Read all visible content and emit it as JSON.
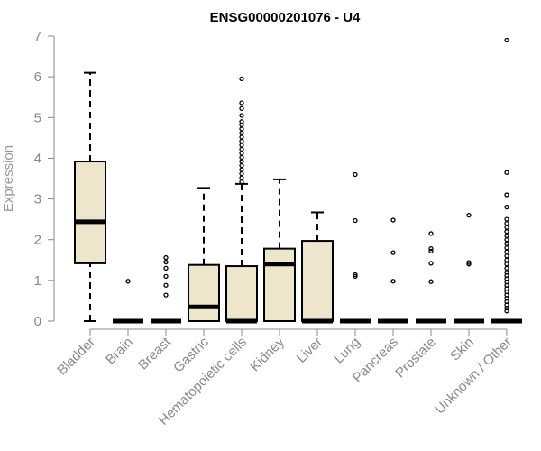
{
  "chart_data": {
    "type": "boxplot",
    "title": "ENSG00000201076 - U4",
    "xlabel": "",
    "ylabel": "Expression",
    "ylim": [
      0,
      7
    ],
    "yticks": [
      0,
      1,
      2,
      3,
      4,
      5,
      6,
      7
    ],
    "grid": false,
    "legend": "none",
    "box_fill": "#ede6cc",
    "categories": [
      "Bladder",
      "Brain",
      "Breast",
      "Gastric",
      "Hematopoietic cells",
      "Kidney",
      "Liver",
      "Lung",
      "Pancreas",
      "Prostate",
      "Skin",
      "Unknown / Other"
    ],
    "boxes": [
      {
        "min": 0.0,
        "q1": 1.42,
        "median": 2.44,
        "q3": 3.92,
        "max": 6.1,
        "outliers": []
      },
      {
        "min": 0.0,
        "q1": 0.0,
        "median": 0.0,
        "q3": 0.0,
        "max": 0.0,
        "outliers": [
          0.98
        ]
      },
      {
        "min": 0.0,
        "q1": 0.0,
        "median": 0.0,
        "q3": 0.0,
        "max": 0.0,
        "outliers": [
          0.64,
          0.88,
          1.1,
          1.3,
          1.45,
          1.56
        ]
      },
      {
        "min": 0.0,
        "q1": 0.0,
        "median": 0.35,
        "q3": 1.38,
        "max": 3.27,
        "outliers": []
      },
      {
        "min": 0.0,
        "q1": 0.0,
        "median": 0.0,
        "q3": 1.35,
        "max": 3.37,
        "outliers": [
          3.42,
          3.52,
          3.62,
          3.72,
          3.82,
          3.92,
          4.02,
          4.12,
          4.22,
          4.32,
          4.42,
          4.52,
          4.62,
          4.72,
          4.82,
          4.9,
          5.05,
          5.22,
          5.36,
          5.95
        ]
      },
      {
        "min": 0.0,
        "q1": 0.0,
        "median": 1.4,
        "q3": 1.78,
        "max": 3.48,
        "outliers": []
      },
      {
        "min": 0.0,
        "q1": 0.0,
        "median": 0.0,
        "q3": 1.97,
        "max": 2.67,
        "outliers": []
      },
      {
        "min": 0.0,
        "q1": 0.0,
        "median": 0.0,
        "q3": 0.0,
        "max": 0.0,
        "outliers": [
          1.1,
          1.14,
          2.47,
          3.6
        ]
      },
      {
        "min": 0.0,
        "q1": 0.0,
        "median": 0.0,
        "q3": 0.0,
        "max": 0.0,
        "outliers": [
          0.98,
          1.68,
          2.48
        ]
      },
      {
        "min": 0.0,
        "q1": 0.0,
        "median": 0.0,
        "q3": 0.0,
        "max": 0.0,
        "outliers": [
          0.97,
          1.42,
          1.72,
          1.78,
          2.15
        ]
      },
      {
        "min": 0.0,
        "q1": 0.0,
        "median": 0.0,
        "q3": 0.0,
        "max": 0.0,
        "outliers": [
          1.4,
          1.44,
          2.6
        ]
      },
      {
        "min": 0.0,
        "q1": 0.0,
        "median": 0.0,
        "q3": 0.0,
        "max": 0.0,
        "outliers": [
          0.25,
          0.32,
          0.4,
          0.48,
          0.56,
          0.64,
          0.72,
          0.8,
          0.88,
          0.96,
          1.04,
          1.12,
          1.2,
          1.3,
          1.4,
          1.5,
          1.6,
          1.7,
          1.8,
          1.9,
          2.0,
          2.1,
          2.2,
          2.3,
          2.4,
          2.5,
          2.8,
          3.1,
          3.65,
          6.9
        ]
      }
    ]
  }
}
